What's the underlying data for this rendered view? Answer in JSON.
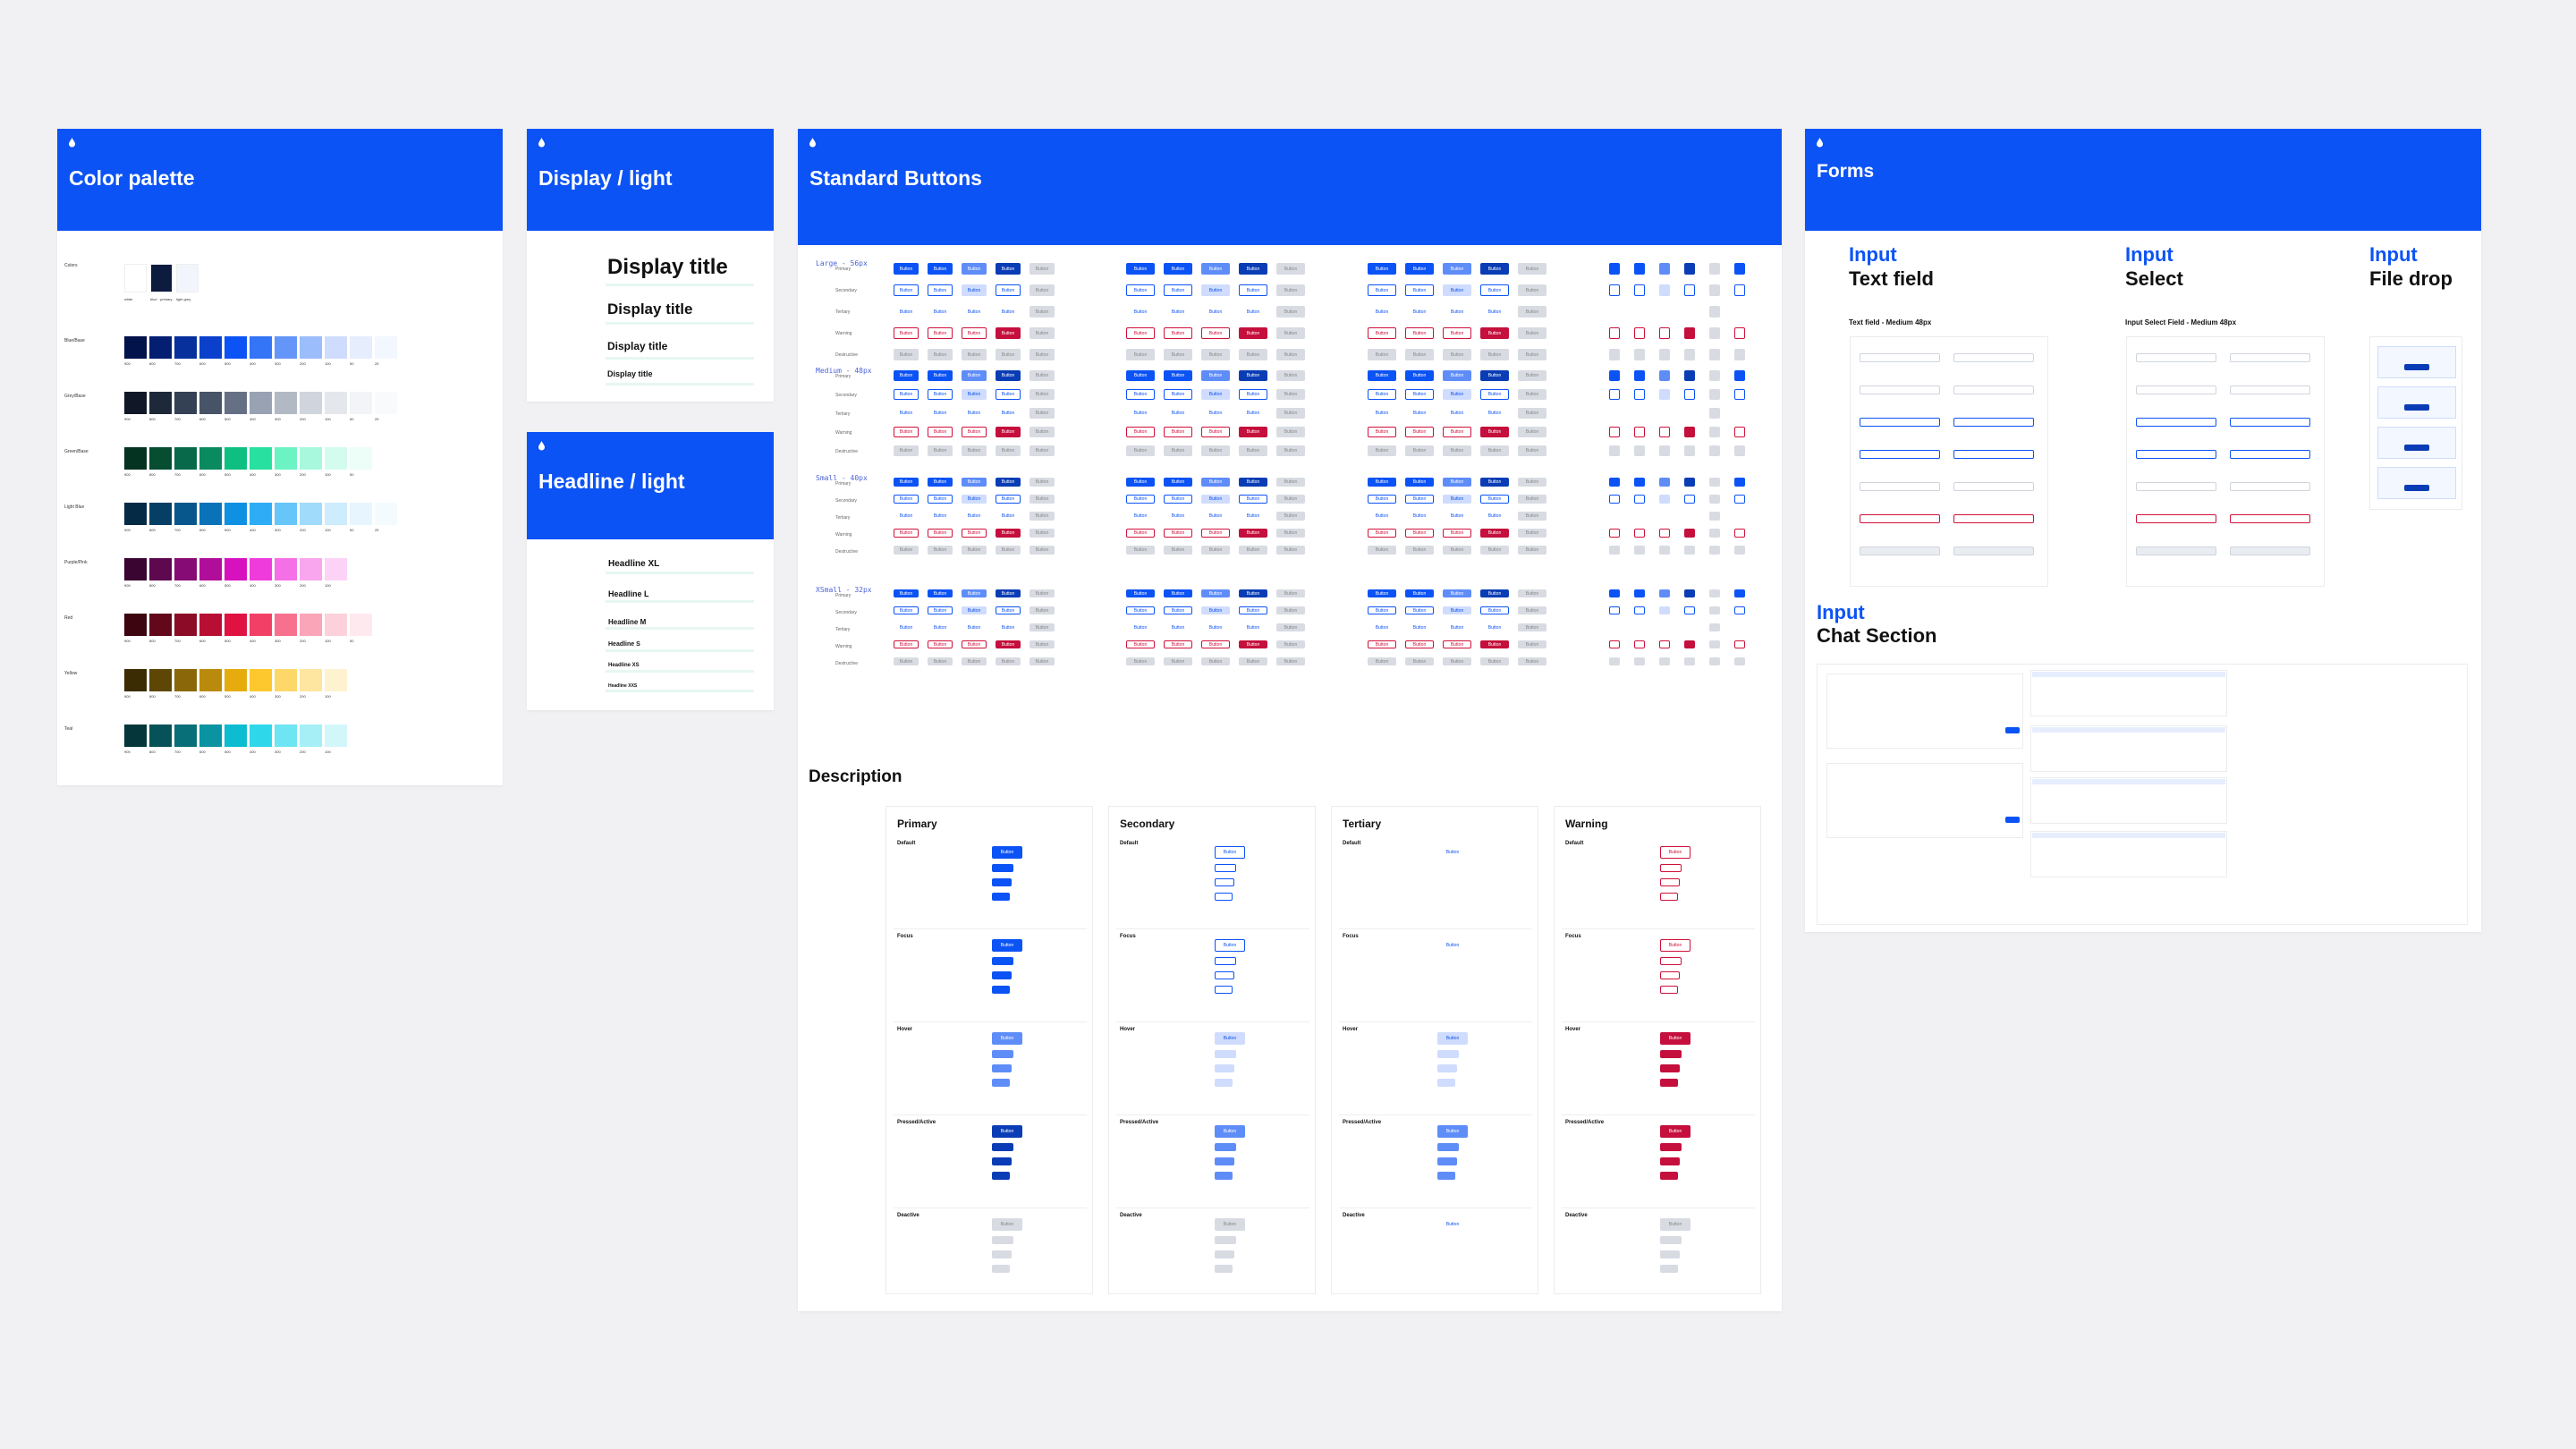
{
  "colors": {
    "accent": "#0c53f5",
    "background": "#f1f1f3"
  },
  "color_palette": {
    "title": "Color palette",
    "icon": "brand-drop-icon",
    "top_label": "Colors",
    "top_swatches": [
      {
        "hex": "#ffffff",
        "name": "white"
      },
      {
        "hex": "#0d1b3e",
        "name": "blue · primary"
      },
      {
        "hex": "#f2f5fc",
        "name": "light grey"
      }
    ],
    "rows": [
      {
        "name": "Blue/Base",
        "colors": [
          "#02124a",
          "#041e72",
          "#07309c",
          "#0a40cc",
          "#0c53f5",
          "#3474f7",
          "#6496f9",
          "#9bbdfb",
          "#cfdcfd",
          "#e6eefe",
          "#f3f7ff"
        ],
        "labels": [
          "900",
          "800",
          "700",
          "600",
          "500",
          "400",
          "300",
          "200",
          "100",
          "50",
          "25"
        ]
      },
      {
        "name": "Grey/Base",
        "colors": [
          "#101828",
          "#1d2939",
          "#344054",
          "#475467",
          "#667085",
          "#98a2b3",
          "#b3b9c4",
          "#d0d5dd",
          "#e4e7ec",
          "#f2f4f7",
          "#f9fafb"
        ],
        "labels": [
          "900",
          "800",
          "700",
          "600",
          "500",
          "400",
          "300",
          "200",
          "100",
          "50",
          "25"
        ]
      },
      {
        "name": "Green/Base",
        "colors": [
          "#053321",
          "#074d31",
          "#08694a",
          "#0a8a5f",
          "#0fbf82",
          "#28e0a0",
          "#6cf3c4",
          "#a7f8dc",
          "#d3fcee",
          "#ecfef7"
        ],
        "labels": [
          "900",
          "800",
          "700",
          "600",
          "500",
          "400",
          "300",
          "200",
          "100",
          "50"
        ]
      },
      {
        "name": "Light Blue",
        "colors": [
          "#042a46",
          "#063f66",
          "#08578c",
          "#0a72b8",
          "#0e90e3",
          "#2eacf5",
          "#66c6f9",
          "#a0dbfb",
          "#cdecfd",
          "#e7f5fe",
          "#f4fbff"
        ],
        "labels": [
          "900",
          "800",
          "700",
          "600",
          "500",
          "400",
          "300",
          "200",
          "100",
          "50",
          "25"
        ]
      },
      {
        "name": "Purple/Pink",
        "colors": [
          "#3a0530",
          "#5e0850",
          "#860b74",
          "#b00e9a",
          "#d811bf",
          "#ef3bdb",
          "#f56fe6",
          "#f9a6ef",
          "#fcd3f7"
        ],
        "labels": [
          "900",
          "800",
          "700",
          "600",
          "500",
          "400",
          "300",
          "200",
          "100"
        ]
      },
      {
        "name": "Red",
        "colors": [
          "#3d0510",
          "#63081a",
          "#8c0b26",
          "#b80e33",
          "#e01242",
          "#f23f66",
          "#f7718f",
          "#fba5b8",
          "#fdd1db",
          "#fee9ee"
        ],
        "labels": [
          "900",
          "800",
          "700",
          "600",
          "500",
          "400",
          "300",
          "200",
          "100",
          "50"
        ]
      },
      {
        "name": "Yellow",
        "colors": [
          "#3b2c04",
          "#5e4606",
          "#8a6709",
          "#b98a0b",
          "#e6ac0e",
          "#fcc82e",
          "#fdd868",
          "#fee6a0",
          "#fff2cf"
        ],
        "labels": [
          "900",
          "800",
          "700",
          "600",
          "500",
          "400",
          "300",
          "200",
          "100"
        ]
      },
      {
        "name": "Teal",
        "colors": [
          "#04363a",
          "#065258",
          "#086f78",
          "#0a93a0",
          "#0cbcd0",
          "#2fd7ea",
          "#6ee5f2",
          "#a6eff7",
          "#d2f7fb"
        ],
        "labels": [
          "900",
          "800",
          "700",
          "600",
          "500",
          "400",
          "300",
          "200",
          "100"
        ]
      }
    ]
  },
  "display_light": {
    "title": "Display / light",
    "icon": "brand-drop-icon",
    "items": [
      "Display title",
      "Display title",
      "Display title",
      "Display title"
    ]
  },
  "headline_light": {
    "title": "Headline / light",
    "icon": "brand-drop-icon",
    "items": [
      "Headline XL",
      "Headline L",
      "Headline M",
      "Headline S",
      "Headline XS",
      "Headline XXS"
    ]
  },
  "standard_buttons": {
    "title": "Standard Buttons",
    "icon": "brand-drop-icon",
    "sizes": [
      "Large - 56px",
      "Medium - 48px",
      "Small - 40px",
      "XSmall - 32px"
    ],
    "row_labels": [
      "Primary",
      "Secondary",
      "Tertiary",
      "Warning",
      "Destructive"
    ],
    "button_label": "Button",
    "description_title": "Description",
    "desc_columns": [
      "Primary",
      "Secondary",
      "Tertiary",
      "Warning"
    ],
    "desc_states": [
      "Default",
      "Focus",
      "Hover",
      "Pressed/Active",
      "Deactive"
    ]
  },
  "forms": {
    "title": "Forms",
    "icon": "brand-drop-icon",
    "sections": [
      {
        "label": "Input",
        "sub": "Text field",
        "caption": "Text field - Medium 48px"
      },
      {
        "label": "Input",
        "sub": "Select",
        "caption": "Input Select Field - Medium 48px"
      },
      {
        "label": "Input",
        "sub": "File drop",
        "caption": ""
      }
    ],
    "chat": {
      "label": "Input",
      "sub": "Chat Section"
    }
  }
}
